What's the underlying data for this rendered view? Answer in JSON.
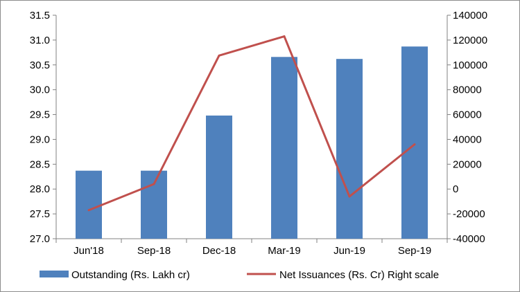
{
  "chart_data": {
    "type": "bar",
    "categories": [
      "Jun'18",
      "Sep-18",
      "Dec-18",
      "Mar-19",
      "Jun-19",
      "Sep-19"
    ],
    "series": [
      {
        "name": "Outstanding (Rs. Lakh cr)",
        "type": "bar",
        "axis": "left",
        "color": "#4f81bd",
        "values": [
          28.37,
          28.37,
          29.48,
          30.66,
          30.62,
          30.87
        ]
      },
      {
        "name": "Net Issuances (Rs. Cr) Right scale",
        "type": "line",
        "axis": "right",
        "color": "#c0504d",
        "values": [
          -17000,
          4000,
          107500,
          123000,
          -6000,
          36000
        ]
      }
    ],
    "y_left": {
      "ylim": [
        27.0,
        31.5
      ],
      "ticks": [
        "27.0",
        "27.5",
        "28.0",
        "28.5",
        "29.0",
        "29.5",
        "30.0",
        "30.5",
        "31.0",
        "31.5"
      ]
    },
    "y_right": {
      "ylim": [
        -40000,
        140000
      ],
      "ticks": [
        "-40000",
        "-20000",
        "0",
        "20000",
        "40000",
        "60000",
        "80000",
        "100000",
        "120000",
        "140000"
      ]
    },
    "grid": false,
    "legend": "bottom"
  }
}
